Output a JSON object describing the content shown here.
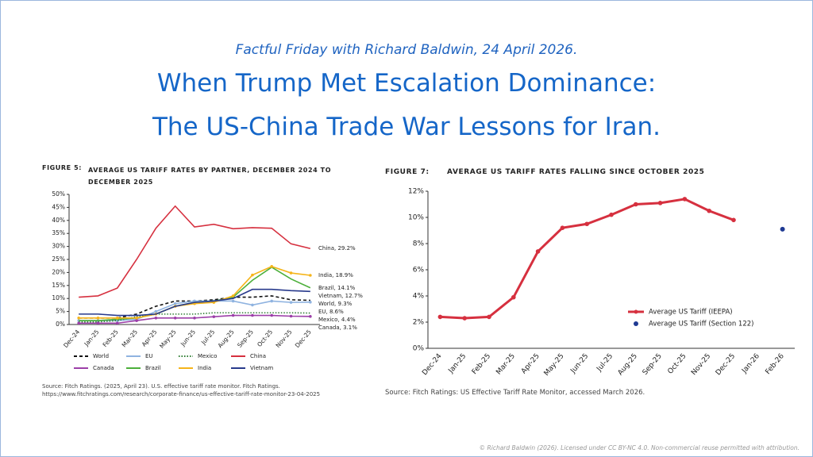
{
  "subtitle": "Factful Friday with Richard Baldwin, 24 April 2026.",
  "title_lines": [
    "When Trump Met Escalation Dominance:",
    "The US-China Trade War Lessons for Iran."
  ],
  "footer": "© Richard Baldwin (2026). Licensed under CC BY-NC 4.0. Non-commercial reuse permitted with attribution.",
  "chart_data": [
    {
      "type": "line",
      "figure_label": "FIGURE 5:",
      "title": "AVERAGE US TARIFF RATES BY PARTNER, DECEMBER 2024 TO DECEMBER 2025",
      "source": "Source: Fitch Ratings. (2025, April 23). U.S. effective tariff rate monitor. Fitch Ratings. https://www.fitchratings.com/research/corporate-finance/us-effective-tariff-rate-monitor-23-04-2025",
      "categories": [
        "Dec-24",
        "Jan-25",
        "Feb-25",
        "Mar-25",
        "Apr-25",
        "May-25",
        "Jun-25",
        "Jul-25",
        "Aug-25",
        "Sep-25",
        "Oct-25",
        "Nov-25",
        "Dec-25"
      ],
      "ylim": [
        0,
        50
      ],
      "yticks": [
        {
          "value": 0,
          "label": "0%"
        },
        {
          "value": 5,
          "label": "5%"
        },
        {
          "value": 10,
          "label": "10%"
        },
        {
          "value": 15,
          "label": "15%"
        },
        {
          "value": 20,
          "label": "20%"
        },
        {
          "value": 25,
          "label": "25%"
        },
        {
          "value": 30,
          "label": "30%"
        },
        {
          "value": 35,
          "label": "35%"
        },
        {
          "value": 40,
          "label": "40%"
        },
        {
          "value": 45,
          "label": "45%"
        },
        {
          "value": 50,
          "label": "50%"
        }
      ],
      "grid": false,
      "legend": "bottom",
      "series": [
        {
          "name": "World",
          "color": "#111111",
          "style": "dashed",
          "label": "World, 9.3%",
          "values": [
            2.5,
            2.5,
            2.5,
            4,
            7,
            9,
            9,
            9.5,
            10.5,
            10.5,
            11,
            9.5,
            9.3
          ]
        },
        {
          "name": "EU",
          "color": "#8fb3e0",
          "style": "solid",
          "label": "EU, 8.6%",
          "values": [
            1.5,
            1.5,
            1.5,
            2,
            5,
            8,
            9,
            9,
            9,
            7.5,
            9,
            8.5,
            8.6
          ]
        },
        {
          "name": "Mexico",
          "color": "#2e7d32",
          "style": "dotted",
          "label": "Mexico, 4.4%",
          "values": [
            1,
            1,
            1.5,
            3,
            4,
            4,
            4,
            4.5,
            4.5,
            4.5,
            4.5,
            4.5,
            4.4
          ]
        },
        {
          "name": "China",
          "color": "#d6303f",
          "style": "solid",
          "label": "China, 29.2%",
          "values": [
            10.5,
            11,
            14,
            25,
            37,
            45.5,
            37.5,
            38.5,
            36.8,
            37.2,
            37,
            31,
            29.2
          ]
        },
        {
          "name": "Canada",
          "color": "#9c3fa8",
          "style": "solid",
          "label": "Canada, 3.1%",
          "values": [
            0.5,
            0.5,
            0.5,
            1.5,
            2.5,
            2.5,
            2.5,
            3,
            3.5,
            3.5,
            3.5,
            3.2,
            3.1
          ]
        },
        {
          "name": "Brazil",
          "color": "#4caf3a",
          "style": "solid",
          "label": "Brazil, 14.1%",
          "values": [
            1.5,
            1.5,
            2,
            2.5,
            4,
            7,
            8.5,
            9,
            10.5,
            17,
            22,
            17.5,
            14.1
          ]
        },
        {
          "name": "India",
          "color": "#f5b41a",
          "style": "solid",
          "label": "India, 18.9%",
          "values": [
            2.5,
            2.5,
            2.5,
            2.5,
            4,
            7,
            8,
            8.5,
            11,
            19,
            22.3,
            19.8,
            18.9
          ]
        },
        {
          "name": "Vietnam",
          "color": "#283a8c",
          "style": "solid",
          "label": "Vietnam, 12.7%",
          "values": [
            4,
            4,
            3.5,
            3.5,
            4,
            7,
            8.5,
            9,
            10,
            13.5,
            13.5,
            13,
            12.7
          ]
        }
      ]
    },
    {
      "type": "line",
      "figure_label": "FIGURE 7:",
      "title": "AVERAGE US TARIFF RATES FALLING SINCE OCTOBER 2025",
      "source": "Source: Fitch Ratings: US Effective Tariff Rate Monitor, accessed March 2026.",
      "categories": [
        "Dec-24",
        "Jan-25",
        "Feb-25",
        "Mar-25",
        "Apr-25",
        "May-25",
        "Jun-25",
        "Jul-25",
        "Aug-25",
        "Sep-25",
        "Oct-25",
        "Nov-25",
        "Dec-25",
        "Jan-26",
        "Feb-26"
      ],
      "ylim": [
        0,
        12
      ],
      "yticks": [
        {
          "value": 0,
          "label": "0%"
        },
        {
          "value": 2,
          "label": "2%"
        },
        {
          "value": 4,
          "label": "4%"
        },
        {
          "value": 6,
          "label": "6%"
        },
        {
          "value": 8,
          "label": "8%"
        },
        {
          "value": 10,
          "label": "10%"
        },
        {
          "value": 12,
          "label": "12%"
        }
      ],
      "grid": false,
      "legend": "inside",
      "series": [
        {
          "name": "Average US Tariff (IEEPA)",
          "color": "#d6303f",
          "style": "solid",
          "values": [
            2.4,
            2.3,
            2.4,
            3.9,
            7.4,
            9.2,
            9.5,
            10.2,
            11,
            11.1,
            11.4,
            10.5,
            9.8,
            null,
            null
          ]
        },
        {
          "name": "Average US Tariff (Section 122)",
          "color": "#1f3a93",
          "style": "points",
          "values": [
            null,
            null,
            null,
            null,
            null,
            null,
            null,
            null,
            null,
            null,
            null,
            null,
            null,
            null,
            9.1
          ]
        }
      ]
    }
  ]
}
